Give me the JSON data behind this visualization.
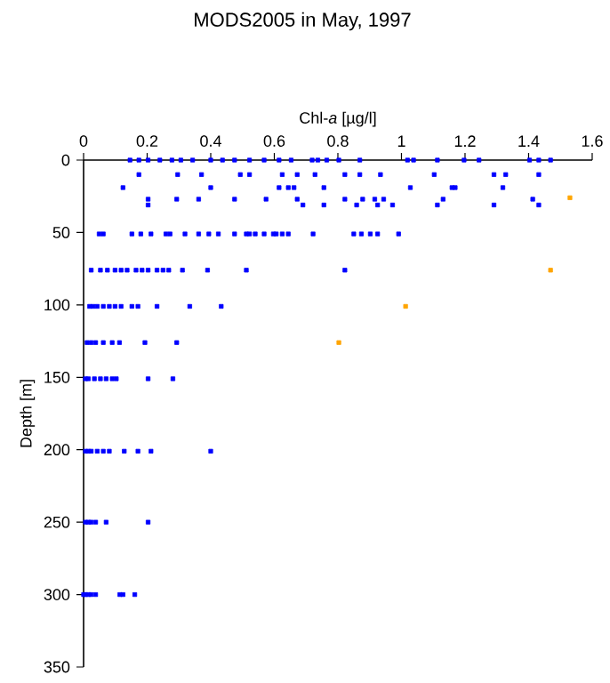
{
  "chart_data": {
    "type": "scatter",
    "title": "MODS2005 in May, 1997",
    "xlabel": "Chl-*a* [µg/l]",
    "ylabel": "Depth [m]",
    "xlim": [
      0,
      1.6
    ],
    "xticks": [
      0,
      0.2,
      0.4,
      0.6,
      0.8,
      1,
      1.2,
      1.4,
      1.6
    ],
    "ylim": [
      350,
      0
    ],
    "yticks": [
      0,
      50,
      100,
      150,
      200,
      250,
      300,
      350
    ],
    "marker": "square",
    "series": [
      {
        "color": "#0000ff",
        "x": [
          0.146,
          0.174,
          0.203,
          0.24,
          0.278,
          0.306,
          0.343,
          0.4,
          0.437,
          0.475,
          0.522,
          0.568,
          0.615,
          0.653,
          0.719,
          0.737,
          0.765,
          0.803,
          0.869,
          1.019,
          1.038,
          1.113,
          1.197,
          1.244,
          1.403,
          1.432,
          1.469,
          0.174,
          0.296,
          0.371,
          0.493,
          0.522,
          0.625,
          0.672,
          0.728,
          0.822,
          0.869,
          0.934,
          1.103,
          1.291,
          1.328,
          1.432,
          0.124,
          0.4,
          0.615,
          0.644,
          0.662,
          0.756,
          1.028,
          1.159,
          1.169,
          1.319,
          0.203,
          0.293,
          0.362,
          0.475,
          0.574,
          0.672,
          0.822,
          0.878,
          0.916,
          0.944,
          1.131,
          1.413,
          0.203,
          0.69,
          0.756,
          0.859,
          0.925,
          0.972,
          1.113,
          1.291,
          1.432,
          0.049,
          0.062,
          0.152,
          0.18,
          0.212,
          0.259,
          0.272,
          0.319,
          0.362,
          0.394,
          0.424,
          0.475,
          0.512,
          0.522,
          0.54,
          0.568,
          0.597,
          0.606,
          0.625,
          0.644,
          0.722,
          0.85,
          0.874,
          0.902,
          0.925,
          0.991,
          0.024,
          0.053,
          0.075,
          0.099,
          0.118,
          0.137,
          0.165,
          0.184,
          0.203,
          0.231,
          0.25,
          0.268,
          0.311,
          0.39,
          0.512,
          0.822,
          0.019,
          0.03,
          0.043,
          0.062,
          0.081,
          0.099,
          0.118,
          0.152,
          0.171,
          0.231,
          0.334,
          0.433,
          0.011,
          0.024,
          0.038,
          0.062,
          0.09,
          0.113,
          0.193,
          0.293,
          0.006,
          0.015,
          0.034,
          0.053,
          0.071,
          0.09,
          0.103,
          0.203,
          0.281,
          0.006,
          0.015,
          0.024,
          0.043,
          0.062,
          0.081,
          0.128,
          0.171,
          0.212,
          0.4,
          0.006,
          0.015,
          0.024,
          0.038,
          0.071,
          0.203,
          0,
          0.006,
          0.015,
          0.024,
          0.038,
          0.114,
          0.124,
          0.161
        ],
        "values": [
          0,
          0,
          0,
          0,
          0,
          0,
          0,
          0,
          0,
          0,
          0,
          0,
          0,
          0,
          0,
          0,
          0,
          0,
          0,
          0,
          0,
          0,
          0,
          0,
          0,
          0,
          0,
          10,
          10,
          10,
          10,
          10,
          10,
          10,
          10,
          10,
          10,
          10,
          10,
          10,
          10,
          10,
          19,
          19,
          19,
          19,
          19,
          19,
          19,
          19,
          19,
          19,
          27,
          27,
          27,
          27,
          27,
          27,
          27,
          27,
          27,
          27,
          27,
          27,
          31,
          31,
          31,
          31,
          31,
          31,
          31,
          31,
          31,
          51,
          51,
          51,
          51,
          51,
          51,
          51,
          51,
          51,
          51,
          51,
          51,
          51,
          51,
          51,
          51,
          51,
          51,
          51,
          51,
          51,
          51,
          51,
          51,
          51,
          51,
          76,
          76,
          76,
          76,
          76,
          76,
          76,
          76,
          76,
          76,
          76,
          76,
          76,
          76,
          76,
          76,
          101,
          101,
          101,
          101,
          101,
          101,
          101,
          101,
          101,
          101,
          101,
          101,
          126,
          126,
          126,
          126,
          126,
          126,
          126,
          126,
          151,
          151,
          151,
          151,
          151,
          151,
          151,
          151,
          151,
          201,
          201,
          201,
          201,
          201,
          201,
          201,
          201,
          201,
          201,
          250,
          250,
          250,
          250,
          250,
          250,
          300,
          300,
          300,
          300,
          300,
          300,
          300,
          300
        ]
      },
      {
        "color": "#ffa500",
        "x": [
          1.53,
          1.469,
          1.013,
          0.803
        ],
        "values": [
          26,
          76,
          101,
          126
        ]
      }
    ]
  }
}
